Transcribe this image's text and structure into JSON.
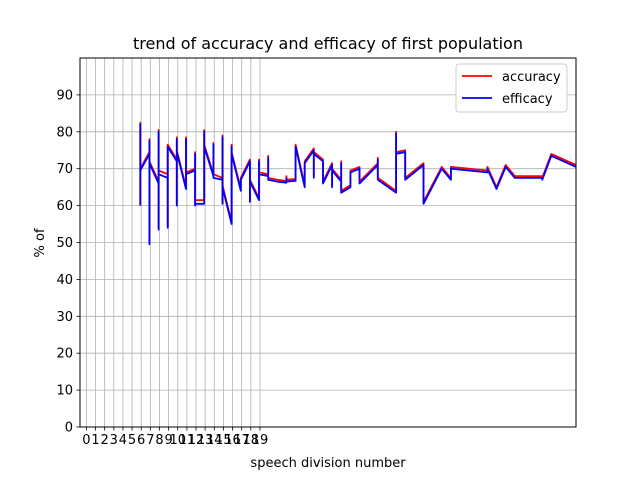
{
  "chart_data": {
    "type": "line",
    "title": "trend of accuracy and efficacy of first population",
    "xlabel": "speech division number",
    "ylabel": "% of",
    "xlim": [
      -0.7,
      53.6
    ],
    "ylim": [
      0,
      100
    ],
    "x_ticks": [
      0,
      1,
      2,
      3,
      4,
      5,
      6,
      7,
      8,
      9,
      10,
      11,
      12,
      13,
      14,
      15,
      16,
      17,
      18,
      19
    ],
    "y_ticks": [
      0,
      10,
      20,
      30,
      40,
      50,
      60,
      70,
      80,
      90
    ],
    "grid": true,
    "legend_position": "top-right",
    "colors": {
      "accuracy": "#ff0000",
      "efficacy": "#0000ff"
    },
    "series": [
      {
        "name": "accuracy",
        "points": [
          [
            5.9,
            60.5
          ],
          [
            5.9,
            82.5
          ],
          [
            5.9,
            70.0
          ],
          [
            6.9,
            74.5
          ],
          [
            6.9,
            49.8
          ],
          [
            6.9,
            78.0
          ],
          [
            6.9,
            72.0
          ],
          [
            7.9,
            66.5
          ],
          [
            7.9,
            54.0
          ],
          [
            7.9,
            80.5
          ],
          [
            7.9,
            69.5
          ],
          [
            8.9,
            68.5
          ],
          [
            8.9,
            54.5
          ],
          [
            8.9,
            76.5
          ],
          [
            9.9,
            72.5
          ],
          [
            9.9,
            60.5
          ],
          [
            9.9,
            78.5
          ],
          [
            9.9,
            75.0
          ],
          [
            10.9,
            65.0
          ],
          [
            10.9,
            78.5
          ],
          [
            10.9,
            69.0
          ],
          [
            11.9,
            70.0
          ],
          [
            11.9,
            60.5
          ],
          [
            11.9,
            74.5
          ],
          [
            11.9,
            61.5
          ],
          [
            12.9,
            61.5
          ],
          [
            12.9,
            80.5
          ],
          [
            12.9,
            76.5
          ],
          [
            13.9,
            68.5
          ],
          [
            13.9,
            77.0
          ],
          [
            13.9,
            68.5
          ],
          [
            14.9,
            67.5
          ],
          [
            14.9,
            61.0
          ],
          [
            14.9,
            79.0
          ],
          [
            14.9,
            65.5
          ],
          [
            15.9,
            55.5
          ],
          [
            15.9,
            76.5
          ],
          [
            15.9,
            74.5
          ],
          [
            16.9,
            64.5
          ],
          [
            16.9,
            67.5
          ],
          [
            17.9,
            72.5
          ],
          [
            17.9,
            61.5
          ],
          [
            17.9,
            67.0
          ],
          [
            18.9,
            62.0
          ],
          [
            18.9,
            72.5
          ],
          [
            18.9,
            69.0
          ],
          [
            19.9,
            68.5
          ],
          [
            19.9,
            73.5
          ],
          [
            19.9,
            67.5
          ],
          [
            20.9,
            67.0
          ],
          [
            21.9,
            66.7
          ],
          [
            21.9,
            68.0
          ],
          [
            21.9,
            67.0
          ],
          [
            22.9,
            67.2
          ],
          [
            22.9,
            76.5
          ],
          [
            23.9,
            65.5
          ],
          [
            23.9,
            72.0
          ],
          [
            24.9,
            75.5
          ],
          [
            24.9,
            68.0
          ],
          [
            24.9,
            74.5
          ],
          [
            25.9,
            72.5
          ],
          [
            25.9,
            66.5
          ],
          [
            26.9,
            71.5
          ],
          [
            26.9,
            65.5
          ],
          [
            26.9,
            70.0
          ],
          [
            27.9,
            67.0
          ],
          [
            27.9,
            72.0
          ],
          [
            27.9,
            64.0
          ],
          [
            28.9,
            65.5
          ],
          [
            28.9,
            69.5
          ],
          [
            29.9,
            70.5
          ],
          [
            29.9,
            66.5
          ],
          [
            31.9,
            71.5
          ],
          [
            31.9,
            73.0
          ],
          [
            31.9,
            67.5
          ],
          [
            33.9,
            64.0
          ],
          [
            33.9,
            80.0
          ],
          [
            33.9,
            74.5
          ],
          [
            34.9,
            75.0
          ],
          [
            34.9,
            67.5
          ],
          [
            36.9,
            71.5
          ],
          [
            36.9,
            61.0
          ],
          [
            38.9,
            70.5
          ],
          [
            39.9,
            67.5
          ],
          [
            39.9,
            70.5
          ],
          [
            43.9,
            69.5
          ],
          [
            43.9,
            70.5
          ],
          [
            44.9,
            65.0
          ],
          [
            45.9,
            71.0
          ],
          [
            46.9,
            68.0
          ],
          [
            49.9,
            68.0
          ],
          [
            49.9,
            67.5
          ],
          [
            50.9,
            74.0
          ],
          [
            53.6,
            71.0
          ]
        ]
      },
      {
        "name": "efficacy",
        "points": [
          [
            5.9,
            60.0
          ],
          [
            5.9,
            82.0
          ],
          [
            5.9,
            69.5
          ],
          [
            6.9,
            74.0
          ],
          [
            6.9,
            49.5
          ],
          [
            6.9,
            77.5
          ],
          [
            6.9,
            71.5
          ],
          [
            7.9,
            66.0
          ],
          [
            7.9,
            53.5
          ],
          [
            7.9,
            80.0
          ],
          [
            7.9,
            68.5
          ],
          [
            8.9,
            67.5
          ],
          [
            8.9,
            54.0
          ],
          [
            8.9,
            76.0
          ],
          [
            9.9,
            72.0
          ],
          [
            9.9,
            60.0
          ],
          [
            9.9,
            78.0
          ],
          [
            9.9,
            74.5
          ],
          [
            10.9,
            64.5
          ],
          [
            10.9,
            78.0
          ],
          [
            10.9,
            68.5
          ],
          [
            11.9,
            69.5
          ],
          [
            11.9,
            60.0
          ],
          [
            11.9,
            74.0
          ],
          [
            11.9,
            60.5
          ],
          [
            12.9,
            60.5
          ],
          [
            12.9,
            80.0
          ],
          [
            12.9,
            76.0
          ],
          [
            13.9,
            68.0
          ],
          [
            13.9,
            76.5
          ],
          [
            13.9,
            67.5
          ],
          [
            14.9,
            67.0
          ],
          [
            14.9,
            60.5
          ],
          [
            14.9,
            78.5
          ],
          [
            14.9,
            65.0
          ],
          [
            15.9,
            55.0
          ],
          [
            15.9,
            76.0
          ],
          [
            15.9,
            74.0
          ],
          [
            16.9,
            64.0
          ],
          [
            16.9,
            67.0
          ],
          [
            17.9,
            72.0
          ],
          [
            17.9,
            61.0
          ],
          [
            17.9,
            66.5
          ],
          [
            18.9,
            61.5
          ],
          [
            18.9,
            72.0
          ],
          [
            18.9,
            68.5
          ],
          [
            19.9,
            68.0
          ],
          [
            19.9,
            73.0
          ],
          [
            19.9,
            67.0
          ],
          [
            20.9,
            66.5
          ],
          [
            21.9,
            66.2
          ],
          [
            21.9,
            67.5
          ],
          [
            21.9,
            66.5
          ],
          [
            22.9,
            66.7
          ],
          [
            22.9,
            76.0
          ],
          [
            23.9,
            65.0
          ],
          [
            23.9,
            71.5
          ],
          [
            24.9,
            75.0
          ],
          [
            24.9,
            67.5
          ],
          [
            24.9,
            74.0
          ],
          [
            25.9,
            72.0
          ],
          [
            25.9,
            66.0
          ],
          [
            26.9,
            71.0
          ],
          [
            26.9,
            65.0
          ],
          [
            26.9,
            69.5
          ],
          [
            27.9,
            66.5
          ],
          [
            27.9,
            71.5
          ],
          [
            27.9,
            63.5
          ],
          [
            28.9,
            65.0
          ],
          [
            28.9,
            69.0
          ],
          [
            29.9,
            70.0
          ],
          [
            29.9,
            66.0
          ],
          [
            31.9,
            71.0
          ],
          [
            31.9,
            72.5
          ],
          [
            31.9,
            67.0
          ],
          [
            33.9,
            63.5
          ],
          [
            33.9,
            79.5
          ],
          [
            33.9,
            74.0
          ],
          [
            34.9,
            74.5
          ],
          [
            34.9,
            67.0
          ],
          [
            36.9,
            71.0
          ],
          [
            36.9,
            60.5
          ],
          [
            38.9,
            70.0
          ],
          [
            39.9,
            67.0
          ],
          [
            39.9,
            70.0
          ],
          [
            43.9,
            69.0
          ],
          [
            43.9,
            70.0
          ],
          [
            44.9,
            64.5
          ],
          [
            45.9,
            70.5
          ],
          [
            46.9,
            67.5
          ],
          [
            49.9,
            67.5
          ],
          [
            49.9,
            67.0
          ],
          [
            50.9,
            73.5
          ],
          [
            53.6,
            70.5
          ]
        ]
      }
    ]
  }
}
